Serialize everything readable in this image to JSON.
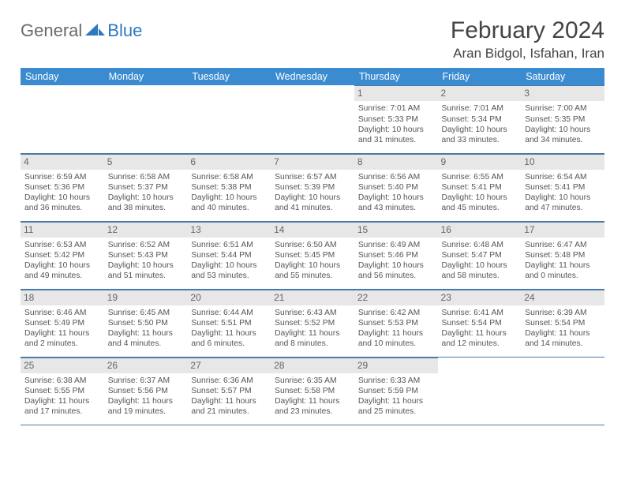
{
  "logo": {
    "general": "General",
    "blue": "Blue"
  },
  "title": "February 2024",
  "location": "Aran Bidgol, Isfahan, Iran",
  "colors": {
    "header_bg": "#3b8bd0",
    "header_text": "#ffffff",
    "daynum_bg": "#e7e7e7",
    "border": "#4a7aa8",
    "logo_gray": "#6a6a6a",
    "logo_blue": "#2f78c1"
  },
  "day_headers": [
    "Sunday",
    "Monday",
    "Tuesday",
    "Wednesday",
    "Thursday",
    "Friday",
    "Saturday"
  ],
  "weeks": [
    [
      null,
      null,
      null,
      null,
      {
        "n": "1",
        "sr": "7:01 AM",
        "ss": "5:33 PM",
        "dl": "10 hours and 31 minutes."
      },
      {
        "n": "2",
        "sr": "7:01 AM",
        "ss": "5:34 PM",
        "dl": "10 hours and 33 minutes."
      },
      {
        "n": "3",
        "sr": "7:00 AM",
        "ss": "5:35 PM",
        "dl": "10 hours and 34 minutes."
      }
    ],
    [
      {
        "n": "4",
        "sr": "6:59 AM",
        "ss": "5:36 PM",
        "dl": "10 hours and 36 minutes."
      },
      {
        "n": "5",
        "sr": "6:58 AM",
        "ss": "5:37 PM",
        "dl": "10 hours and 38 minutes."
      },
      {
        "n": "6",
        "sr": "6:58 AM",
        "ss": "5:38 PM",
        "dl": "10 hours and 40 minutes."
      },
      {
        "n": "7",
        "sr": "6:57 AM",
        "ss": "5:39 PM",
        "dl": "10 hours and 41 minutes."
      },
      {
        "n": "8",
        "sr": "6:56 AM",
        "ss": "5:40 PM",
        "dl": "10 hours and 43 minutes."
      },
      {
        "n": "9",
        "sr": "6:55 AM",
        "ss": "5:41 PM",
        "dl": "10 hours and 45 minutes."
      },
      {
        "n": "10",
        "sr": "6:54 AM",
        "ss": "5:41 PM",
        "dl": "10 hours and 47 minutes."
      }
    ],
    [
      {
        "n": "11",
        "sr": "6:53 AM",
        "ss": "5:42 PM",
        "dl": "10 hours and 49 minutes."
      },
      {
        "n": "12",
        "sr": "6:52 AM",
        "ss": "5:43 PM",
        "dl": "10 hours and 51 minutes."
      },
      {
        "n": "13",
        "sr": "6:51 AM",
        "ss": "5:44 PM",
        "dl": "10 hours and 53 minutes."
      },
      {
        "n": "14",
        "sr": "6:50 AM",
        "ss": "5:45 PM",
        "dl": "10 hours and 55 minutes."
      },
      {
        "n": "15",
        "sr": "6:49 AM",
        "ss": "5:46 PM",
        "dl": "10 hours and 56 minutes."
      },
      {
        "n": "16",
        "sr": "6:48 AM",
        "ss": "5:47 PM",
        "dl": "10 hours and 58 minutes."
      },
      {
        "n": "17",
        "sr": "6:47 AM",
        "ss": "5:48 PM",
        "dl": "11 hours and 0 minutes."
      }
    ],
    [
      {
        "n": "18",
        "sr": "6:46 AM",
        "ss": "5:49 PM",
        "dl": "11 hours and 2 minutes."
      },
      {
        "n": "19",
        "sr": "6:45 AM",
        "ss": "5:50 PM",
        "dl": "11 hours and 4 minutes."
      },
      {
        "n": "20",
        "sr": "6:44 AM",
        "ss": "5:51 PM",
        "dl": "11 hours and 6 minutes."
      },
      {
        "n": "21",
        "sr": "6:43 AM",
        "ss": "5:52 PM",
        "dl": "11 hours and 8 minutes."
      },
      {
        "n": "22",
        "sr": "6:42 AM",
        "ss": "5:53 PM",
        "dl": "11 hours and 10 minutes."
      },
      {
        "n": "23",
        "sr": "6:41 AM",
        "ss": "5:54 PM",
        "dl": "11 hours and 12 minutes."
      },
      {
        "n": "24",
        "sr": "6:39 AM",
        "ss": "5:54 PM",
        "dl": "11 hours and 14 minutes."
      }
    ],
    [
      {
        "n": "25",
        "sr": "6:38 AM",
        "ss": "5:55 PM",
        "dl": "11 hours and 17 minutes."
      },
      {
        "n": "26",
        "sr": "6:37 AM",
        "ss": "5:56 PM",
        "dl": "11 hours and 19 minutes."
      },
      {
        "n": "27",
        "sr": "6:36 AM",
        "ss": "5:57 PM",
        "dl": "11 hours and 21 minutes."
      },
      {
        "n": "28",
        "sr": "6:35 AM",
        "ss": "5:58 PM",
        "dl": "11 hours and 23 minutes."
      },
      {
        "n": "29",
        "sr": "6:33 AM",
        "ss": "5:59 PM",
        "dl": "11 hours and 25 minutes."
      },
      null,
      null
    ]
  ],
  "labels": {
    "sunrise": "Sunrise: ",
    "sunset": "Sunset: ",
    "daylight": "Daylight: "
  }
}
